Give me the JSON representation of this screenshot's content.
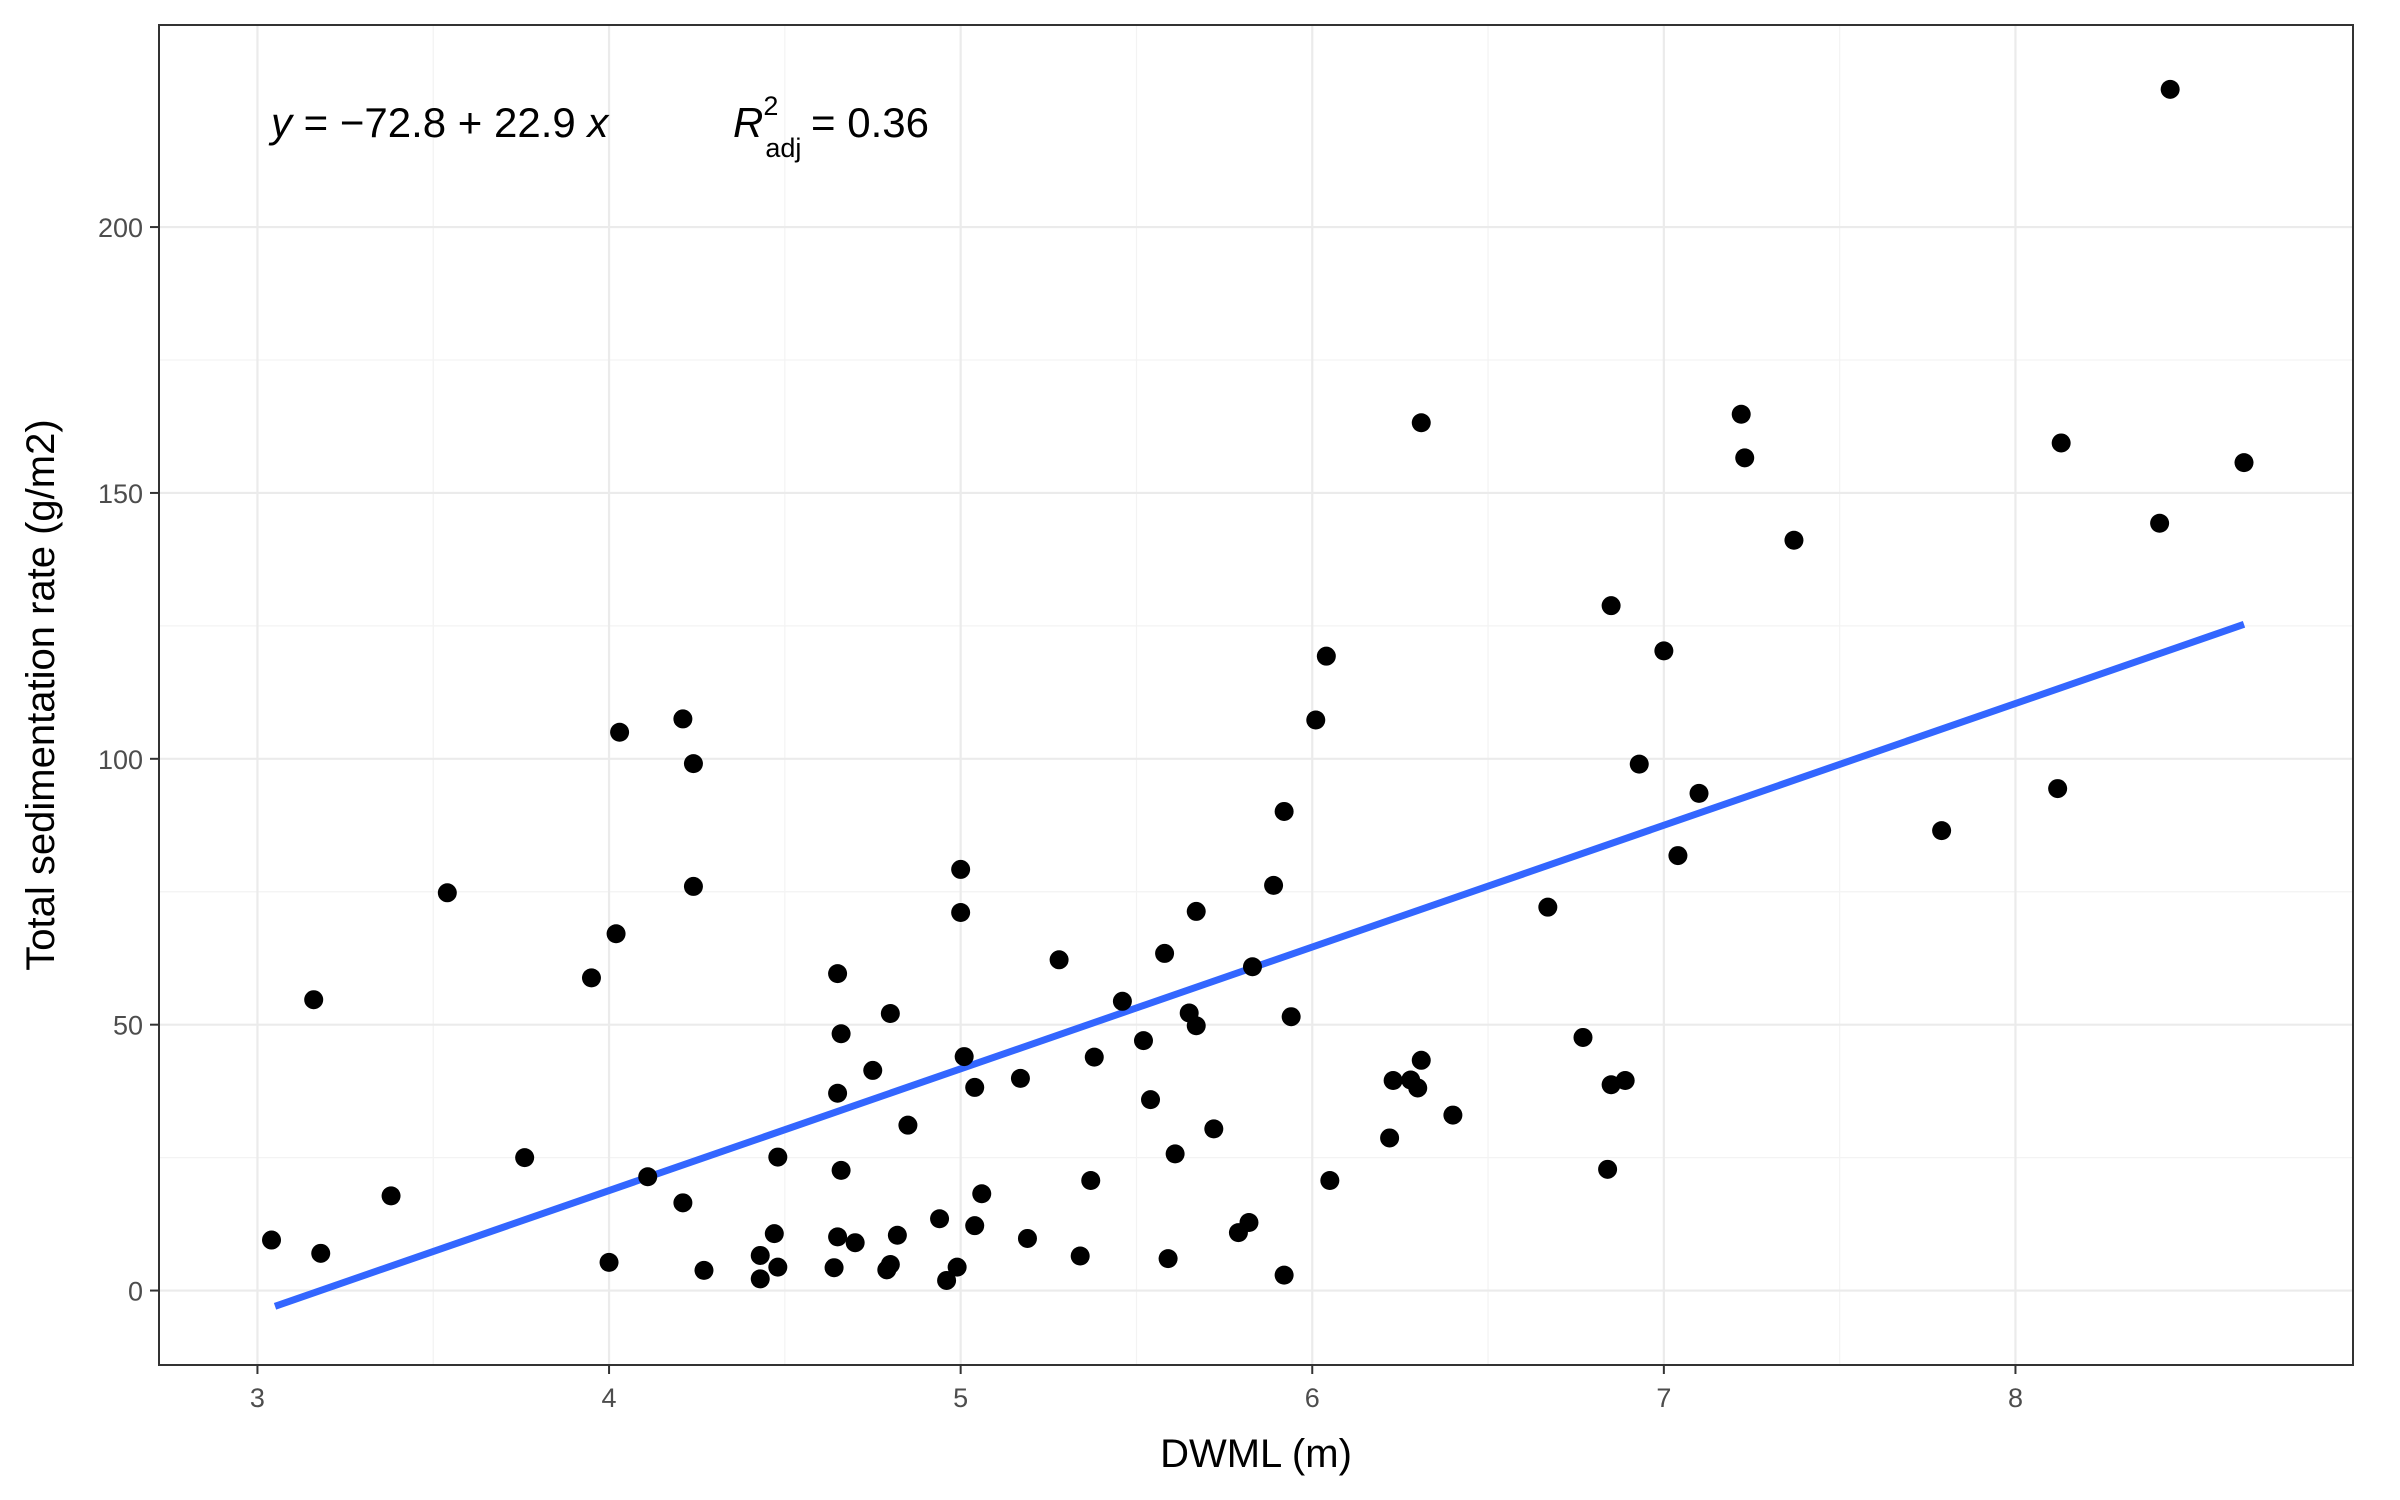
{
  "chart_data": {
    "type": "scatter",
    "title": "",
    "xlabel": "DWML (m)",
    "ylabel": "Total sedimentation rate (g/m2)",
    "xlim": [
      2.72,
      8.96
    ],
    "ylim": [
      -14,
      238
    ],
    "xticks": [
      3,
      4,
      5,
      6,
      7,
      8
    ],
    "yticks": [
      0,
      50,
      100,
      150,
      200
    ],
    "xtick_labels": [
      "3",
      "4",
      "5",
      "6",
      "7",
      "8"
    ],
    "ytick_labels": [
      "0",
      "50",
      "100",
      "150",
      "200"
    ],
    "grid": true,
    "annotation": {
      "y_label": "y",
      "equation": " = −72.8 + 22.9 ",
      "x_label": "x",
      "r_label": "R",
      "r_sup": "2",
      "r_sub": "adj",
      "r_value": " = 0.36"
    },
    "fit_line": {
      "intercept": -72.8,
      "slope": 22.9,
      "x_range": [
        3.05,
        8.65
      ],
      "color": "#3366ff"
    },
    "points": [
      {
        "x": 3.04,
        "y": 9.5
      },
      {
        "x": 3.16,
        "y": 54.7
      },
      {
        "x": 3.18,
        "y": 7.0
      },
      {
        "x": 3.38,
        "y": 17.8
      },
      {
        "x": 3.54,
        "y": 74.8
      },
      {
        "x": 3.76,
        "y": 25.0
      },
      {
        "x": 3.95,
        "y": 58.8
      },
      {
        "x": 4.0,
        "y": 5.3
      },
      {
        "x": 4.02,
        "y": 67.1
      },
      {
        "x": 4.03,
        "y": 105.0
      },
      {
        "x": 4.11,
        "y": 21.4
      },
      {
        "x": 4.21,
        "y": 107.5
      },
      {
        "x": 4.21,
        "y": 16.5
      },
      {
        "x": 4.24,
        "y": 99.1
      },
      {
        "x": 4.24,
        "y": 76.0
      },
      {
        "x": 4.27,
        "y": 3.8
      },
      {
        "x": 4.43,
        "y": 6.6
      },
      {
        "x": 4.43,
        "y": 2.2
      },
      {
        "x": 4.47,
        "y": 10.7
      },
      {
        "x": 4.48,
        "y": 4.4
      },
      {
        "x": 4.48,
        "y": 25.1
      },
      {
        "x": 4.64,
        "y": 4.3
      },
      {
        "x": 4.65,
        "y": 59.6
      },
      {
        "x": 4.65,
        "y": 37.1
      },
      {
        "x": 4.65,
        "y": 10.1
      },
      {
        "x": 4.66,
        "y": 48.3
      },
      {
        "x": 4.66,
        "y": 22.6
      },
      {
        "x": 4.7,
        "y": 9.0
      },
      {
        "x": 4.75,
        "y": 41.4
      },
      {
        "x": 4.79,
        "y": 3.9
      },
      {
        "x": 4.8,
        "y": 52.1
      },
      {
        "x": 4.8,
        "y": 4.9
      },
      {
        "x": 4.82,
        "y": 10.4
      },
      {
        "x": 4.85,
        "y": 31.1
      },
      {
        "x": 4.94,
        "y": 13.5
      },
      {
        "x": 4.96,
        "y": 1.9
      },
      {
        "x": 4.99,
        "y": 4.4
      },
      {
        "x": 5.0,
        "y": 79.2
      },
      {
        "x": 5.0,
        "y": 71.1
      },
      {
        "x": 5.01,
        "y": 44.0
      },
      {
        "x": 5.04,
        "y": 38.2
      },
      {
        "x": 5.04,
        "y": 12.2
      },
      {
        "x": 5.06,
        "y": 18.2
      },
      {
        "x": 5.17,
        "y": 39.9
      },
      {
        "x": 5.19,
        "y": 9.8
      },
      {
        "x": 5.28,
        "y": 62.2
      },
      {
        "x": 5.34,
        "y": 6.5
      },
      {
        "x": 5.37,
        "y": 20.7
      },
      {
        "x": 5.38,
        "y": 43.9
      },
      {
        "x": 5.46,
        "y": 54.4
      },
      {
        "x": 5.52,
        "y": 47.0
      },
      {
        "x": 5.54,
        "y": 35.9
      },
      {
        "x": 5.58,
        "y": 63.4
      },
      {
        "x": 5.59,
        "y": 6.0
      },
      {
        "x": 5.61,
        "y": 25.7
      },
      {
        "x": 5.65,
        "y": 52.2
      },
      {
        "x": 5.67,
        "y": 71.3
      },
      {
        "x": 5.67,
        "y": 49.8
      },
      {
        "x": 5.72,
        "y": 30.4
      },
      {
        "x": 5.79,
        "y": 10.9
      },
      {
        "x": 5.82,
        "y": 12.8
      },
      {
        "x": 5.83,
        "y": 60.9
      },
      {
        "x": 5.89,
        "y": 76.2
      },
      {
        "x": 5.92,
        "y": 90.1
      },
      {
        "x": 5.92,
        "y": 2.9
      },
      {
        "x": 5.94,
        "y": 51.5
      },
      {
        "x": 6.01,
        "y": 107.3
      },
      {
        "x": 6.04,
        "y": 119.3
      },
      {
        "x": 6.05,
        "y": 20.7
      },
      {
        "x": 6.22,
        "y": 28.7
      },
      {
        "x": 6.23,
        "y": 39.5
      },
      {
        "x": 6.28,
        "y": 39.6
      },
      {
        "x": 6.3,
        "y": 38.1
      },
      {
        "x": 6.31,
        "y": 163.2
      },
      {
        "x": 6.31,
        "y": 43.3
      },
      {
        "x": 6.4,
        "y": 33.0
      },
      {
        "x": 6.67,
        "y": 72.1
      },
      {
        "x": 6.77,
        "y": 47.6
      },
      {
        "x": 6.84,
        "y": 22.8
      },
      {
        "x": 6.85,
        "y": 128.8
      },
      {
        "x": 6.85,
        "y": 38.7
      },
      {
        "x": 6.89,
        "y": 39.5
      },
      {
        "x": 6.93,
        "y": 99.0
      },
      {
        "x": 7.0,
        "y": 120.3
      },
      {
        "x": 7.04,
        "y": 81.8
      },
      {
        "x": 7.1,
        "y": 93.5
      },
      {
        "x": 7.22,
        "y": 164.8
      },
      {
        "x": 7.23,
        "y": 156.6
      },
      {
        "x": 7.37,
        "y": 141.1
      },
      {
        "x": 7.79,
        "y": 86.5
      },
      {
        "x": 8.12,
        "y": 94.4
      },
      {
        "x": 8.13,
        "y": 159.4
      },
      {
        "x": 8.41,
        "y": 144.3
      },
      {
        "x": 8.44,
        "y": 225.9
      },
      {
        "x": 8.65,
        "y": 155.7
      }
    ]
  }
}
